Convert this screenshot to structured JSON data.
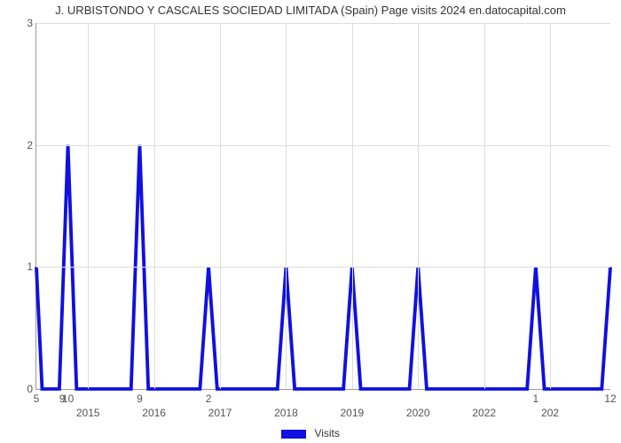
{
  "chart": {
    "type": "line",
    "title": "J. URBISTONDO Y CASCALES SOCIEDAD LIMITADA (Spain) Page visits 2024 en.datocapital.com",
    "title_fontsize": 13,
    "background_color": "#ffffff",
    "grid_color": "#dddddd",
    "axis_color": "#999999",
    "ylim": [
      0,
      3
    ],
    "yticks": [
      0,
      1,
      2,
      3
    ],
    "x_bottom_ticks": [
      {
        "pos": 0.0,
        "label": "5"
      },
      {
        "pos": 0.045,
        "label": "9"
      },
      {
        "pos": 0.055,
        "label": "10"
      },
      {
        "pos": 0.18,
        "label": "9"
      },
      {
        "pos": 0.3,
        "label": "2"
      },
      {
        "pos": 0.87,
        "label": "1"
      },
      {
        "pos": 1.0,
        "label": "12"
      }
    ],
    "x_year_ticks": [
      {
        "pos": 0.09,
        "label": "2015"
      },
      {
        "pos": 0.205,
        "label": "2016"
      },
      {
        "pos": 0.32,
        "label": "2017"
      },
      {
        "pos": 0.435,
        "label": "2018"
      },
      {
        "pos": 0.55,
        "label": "2019"
      },
      {
        "pos": 0.665,
        "label": "2020"
      },
      {
        "pos": 0.78,
        "label": "2022"
      },
      {
        "pos": 0.895,
        "label": "202"
      }
    ],
    "x_grid_positions": [
      0.09,
      0.205,
      0.32,
      0.435,
      0.55,
      0.665,
      0.78,
      0.895
    ],
    "series": {
      "name": "Visits",
      "color": "#1010e0",
      "stroke_width": 2.5,
      "fill_opacity": 0,
      "points": [
        [
          0.0,
          1.0
        ],
        [
          0.01,
          0.0
        ],
        [
          0.04,
          0.0
        ],
        [
          0.055,
          2.0
        ],
        [
          0.07,
          0.0
        ],
        [
          0.165,
          0.0
        ],
        [
          0.18,
          2.0
        ],
        [
          0.195,
          0.0
        ],
        [
          0.285,
          0.0
        ],
        [
          0.3,
          1.0
        ],
        [
          0.315,
          0.0
        ],
        [
          0.42,
          0.0
        ],
        [
          0.435,
          1.0
        ],
        [
          0.45,
          0.0
        ],
        [
          0.535,
          0.0
        ],
        [
          0.55,
          1.0
        ],
        [
          0.565,
          0.0
        ],
        [
          0.65,
          0.0
        ],
        [
          0.665,
          1.0
        ],
        [
          0.68,
          0.0
        ],
        [
          0.855,
          0.0
        ],
        [
          0.87,
          1.0
        ],
        [
          0.885,
          0.0
        ],
        [
          0.985,
          0.0
        ],
        [
          1.0,
          1.0
        ]
      ]
    },
    "legend_label": "Visits"
  }
}
